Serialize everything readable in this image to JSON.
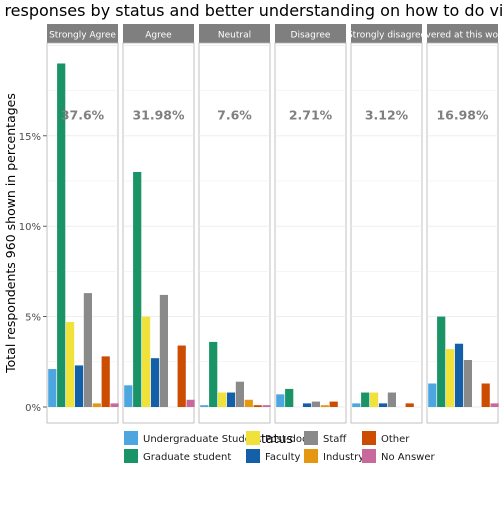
{
  "chart_data": {
    "type": "bar",
    "title": "Post-survey responses by status and better understanding on how to do visualizations",
    "xlabel": "Status",
    "ylabel": "Total respondents 960 shown in percentages",
    "ylim": [
      0,
      21
    ],
    "yticks": [
      0,
      5,
      10,
      15
    ],
    "ytick_labels": [
      "0%",
      "5%",
      "10%",
      "15%"
    ],
    "grid": true,
    "legend_position": "bottom",
    "facets": [
      {
        "label": "Strongly Agree",
        "total_label": "37.6%"
      },
      {
        "label": "Agree",
        "total_label": "31.98%"
      },
      {
        "label": "Neutral",
        "total_label": "7.6%"
      },
      {
        "label": "Disagree",
        "total_label": "2.71%"
      },
      {
        "label": "Strongly disagree",
        "total_label": "3.12%"
      },
      {
        "label": "Not covered at this workshop",
        "total_label": "16.98%"
      }
    ],
    "series": [
      {
        "name": "Undergraduate Student",
        "color": "#4da6e0",
        "values": [
          2.1,
          1.2,
          0.1,
          0.7,
          0.2,
          1.3
        ]
      },
      {
        "name": "Graduate student",
        "color": "#1a9466",
        "values": [
          19.0,
          13.0,
          3.6,
          1.0,
          0.8,
          5.0
        ]
      },
      {
        "name": "Post-doc",
        "color": "#f0e23a",
        "values": [
          4.7,
          5.0,
          0.8,
          0.0,
          0.8,
          3.2
        ]
      },
      {
        "name": "Faculty",
        "color": "#1460a8",
        "values": [
          2.3,
          2.7,
          0.8,
          0.2,
          0.2,
          3.5
        ]
      },
      {
        "name": "Staff",
        "color": "#8a8a8a",
        "values": [
          6.3,
          6.2,
          1.4,
          0.3,
          0.8,
          2.6
        ]
      },
      {
        "name": "Industry",
        "color": "#e59712",
        "values": [
          0.2,
          0.0,
          0.4,
          0.1,
          0.0,
          0.0
        ]
      },
      {
        "name": "Other",
        "color": "#cc4c02",
        "values": [
          2.8,
          3.4,
          0.1,
          0.3,
          0.2,
          1.3
        ]
      },
      {
        "name": "No Answer",
        "color": "#c7699a",
        "values": [
          0.2,
          0.4,
          0.1,
          0.0,
          0.0,
          0.2
        ]
      }
    ],
    "legend_order": [
      "Undergraduate Student",
      "Graduate student",
      "Post-doc",
      "Faculty",
      "Staff",
      "Industry",
      "Other",
      "No Answer"
    ]
  }
}
